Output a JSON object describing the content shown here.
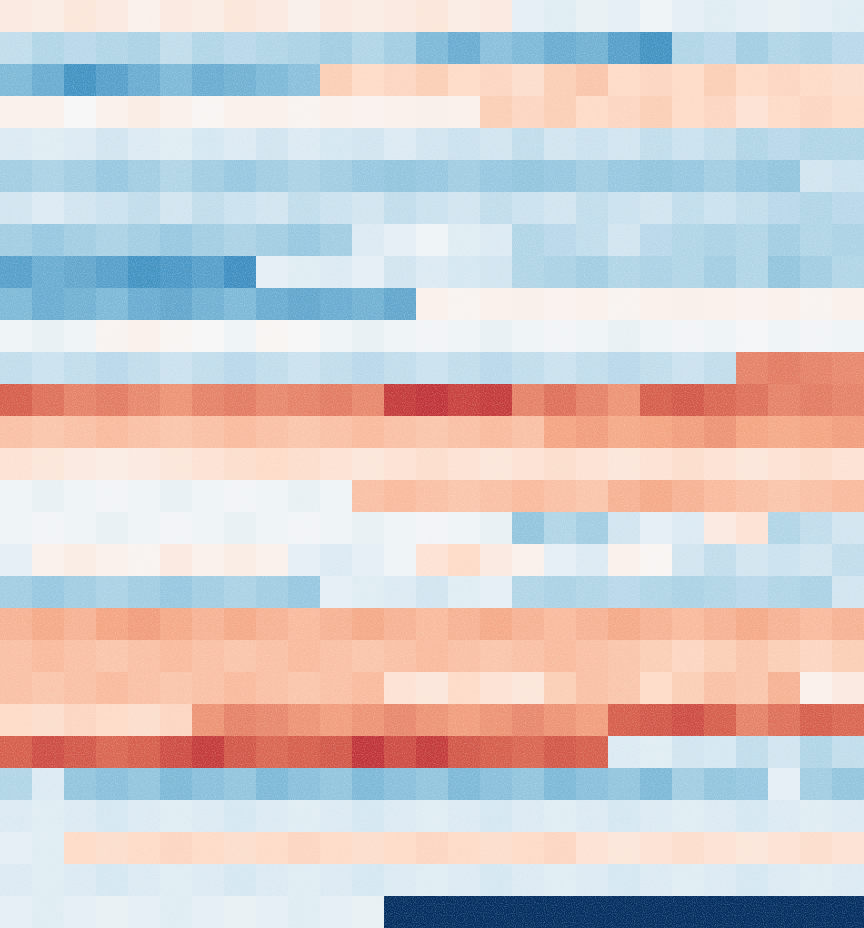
{
  "chart_data": {
    "type": "heatmap",
    "zlim": [
      -1,
      1
    ],
    "tick_labels": false,
    "cells": [
      [
        0.1,
        0.08,
        0.12,
        0.1,
        0.05,
        0.1,
        0.08,
        0.12,
        0.1,
        0.06,
        0.1,
        0.08,
        0.1,
        0.12,
        0.08,
        0.1,
        -0.1,
        -0.12,
        -0.08,
        -0.1,
        -0.05,
        -0.1,
        -0.12,
        -0.1,
        -0.08,
        -0.1,
        -0.12
      ],
      [
        -0.25,
        -0.3,
        -0.28,
        -0.3,
        -0.32,
        -0.25,
        -0.3,
        -0.28,
        -0.3,
        -0.32,
        -0.35,
        -0.3,
        -0.35,
        -0.45,
        -0.5,
        -0.42,
        -0.45,
        -0.5,
        -0.48,
        -0.55,
        -0.6,
        -0.3,
        -0.28,
        -0.35,
        -0.3,
        -0.32,
        -0.28
      ],
      [
        -0.45,
        -0.5,
        -0.6,
        -0.55,
        -0.5,
        -0.45,
        -0.5,
        -0.48,
        -0.45,
        -0.42,
        0.25,
        0.2,
        0.22,
        0.25,
        0.2,
        0.22,
        0.18,
        0.25,
        0.28,
        0.2,
        0.22,
        0.2,
        0.25,
        0.2,
        0.22,
        0.2,
        0.18
      ],
      [
        0.05,
        0.05,
        0.0,
        0.05,
        0.08,
        0.05,
        0.02,
        0.05,
        0.05,
        0.03,
        0.05,
        0.04,
        0.05,
        0.06,
        0.05,
        0.25,
        0.22,
        0.25,
        0.2,
        0.22,
        0.25,
        0.2,
        0.22,
        0.15,
        0.2,
        0.22,
        0.2
      ],
      [
        -0.15,
        -0.12,
        -0.15,
        -0.2,
        -0.15,
        -0.12,
        -0.18,
        -0.15,
        -0.2,
        -0.15,
        -0.18,
        -0.2,
        -0.15,
        -0.2,
        -0.22,
        -0.2,
        -0.25,
        -0.2,
        -0.22,
        -0.2,
        -0.25,
        -0.22,
        -0.25,
        -0.3,
        -0.28,
        -0.3,
        -0.3
      ],
      [
        -0.35,
        -0.32,
        -0.35,
        -0.38,
        -0.35,
        -0.3,
        -0.35,
        -0.38,
        -0.35,
        -0.32,
        -0.35,
        -0.38,
        -0.4,
        -0.38,
        -0.35,
        -0.38,
        -0.4,
        -0.38,
        -0.35,
        -0.38,
        -0.4,
        -0.38,
        -0.35,
        -0.38,
        -0.4,
        -0.2,
        -0.22
      ],
      [
        -0.2,
        -0.15,
        -0.2,
        -0.22,
        -0.25,
        -0.2,
        -0.25,
        -0.22,
        -0.2,
        -0.25,
        -0.22,
        -0.2,
        -0.25,
        -0.22,
        -0.2,
        -0.25,
        -0.22,
        -0.2,
        -0.25,
        -0.22,
        -0.2,
        -0.25,
        -0.22,
        -0.25,
        -0.28,
        -0.3,
        -0.28
      ],
      [
        -0.35,
        -0.38,
        -0.35,
        -0.32,
        -0.35,
        -0.38,
        -0.35,
        -0.32,
        -0.35,
        -0.38,
        -0.35,
        -0.15,
        -0.1,
        -0.05,
        -0.12,
        -0.15,
        -0.3,
        -0.28,
        -0.25,
        -0.2,
        -0.28,
        -0.3,
        -0.32,
        -0.3,
        -0.35,
        -0.3,
        -0.32
      ],
      [
        -0.55,
        -0.5,
        -0.52,
        -0.55,
        -0.6,
        -0.58,
        -0.55,
        -0.62,
        -0.1,
        -0.12,
        -0.15,
        -0.1,
        -0.2,
        -0.15,
        -0.18,
        -0.2,
        -0.3,
        -0.32,
        -0.35,
        -0.3,
        -0.32,
        -0.3,
        -0.35,
        -0.3,
        -0.4,
        -0.35,
        -0.3
      ],
      [
        -0.45,
        -0.5,
        -0.48,
        -0.45,
        -0.5,
        -0.52,
        -0.48,
        -0.45,
        -0.5,
        -0.52,
        -0.5,
        -0.48,
        -0.52,
        0.05,
        0.03,
        0.05,
        0.06,
        0.04,
        0.05,
        0.03,
        0.05,
        0.06,
        0.05,
        0.04,
        0.05,
        0.03,
        0.05
      ],
      [
        -0.05,
        -0.08,
        -0.05,
        0.03,
        0.05,
        0.02,
        0.0,
        -0.05,
        0.02,
        0.0,
        -0.05,
        -0.08,
        -0.05,
        -0.03,
        -0.05,
        -0.08,
        -0.05,
        -0.03,
        -0.05,
        -0.08,
        -0.05,
        -0.03,
        -0.05,
        -0.02,
        -0.05,
        -0.03,
        -0.05
      ],
      [
        -0.25,
        -0.22,
        -0.25,
        -0.28,
        -0.25,
        -0.22,
        -0.25,
        -0.28,
        -0.25,
        -0.22,
        -0.25,
        -0.28,
        -0.25,
        -0.22,
        -0.25,
        -0.28,
        -0.25,
        -0.22,
        -0.25,
        -0.28,
        -0.25,
        -0.22,
        -0.25,
        0.5,
        0.52,
        0.5,
        0.48
      ],
      [
        0.6,
        0.55,
        0.5,
        0.52,
        0.48,
        0.45,
        0.5,
        0.52,
        0.48,
        0.5,
        0.52,
        0.48,
        0.7,
        0.72,
        0.68,
        0.7,
        0.5,
        0.55,
        0.5,
        0.45,
        0.6,
        0.62,
        0.58,
        0.55,
        0.5,
        0.52,
        0.5
      ],
      [
        0.3,
        0.28,
        0.3,
        0.32,
        0.3,
        0.28,
        0.3,
        0.32,
        0.3,
        0.28,
        0.3,
        0.32,
        0.3,
        0.28,
        0.3,
        0.32,
        0.3,
        0.4,
        0.42,
        0.38,
        0.4,
        0.42,
        0.45,
        0.4,
        0.38,
        0.4,
        0.42
      ],
      [
        0.15,
        0.12,
        0.1,
        0.08,
        0.1,
        0.12,
        0.15,
        0.18,
        0.2,
        0.18,
        0.15,
        0.12,
        0.15,
        0.18,
        0.15,
        0.12,
        0.15,
        0.18,
        0.15,
        0.12,
        0.15,
        0.18,
        0.15,
        0.12,
        0.15,
        0.18,
        0.15
      ],
      [
        -0.05,
        -0.08,
        -0.05,
        -0.03,
        -0.05,
        -0.08,
        -0.05,
        -0.03,
        -0.05,
        -0.08,
        -0.05,
        0.3,
        0.32,
        0.3,
        0.28,
        0.3,
        0.32,
        0.3,
        0.28,
        0.35,
        0.38,
        0.35,
        0.32,
        0.3,
        0.28,
        0.3,
        0.32
      ],
      [
        -0.05,
        -0.03,
        -0.05,
        -0.08,
        -0.05,
        -0.03,
        -0.05,
        -0.08,
        -0.05,
        -0.03,
        -0.05,
        -0.08,
        -0.05,
        -0.03,
        -0.05,
        -0.08,
        -0.4,
        -0.3,
        -0.35,
        -0.2,
        -0.1,
        -0.15,
        0.1,
        0.15,
        -0.3,
        -0.25,
        -0.2
      ],
      [
        -0.1,
        0.05,
        0.08,
        0.05,
        0.03,
        0.1,
        0.05,
        0.08,
        0.05,
        -0.1,
        -0.15,
        -0.1,
        -0.05,
        0.15,
        0.2,
        0.1,
        0.05,
        -0.1,
        -0.15,
        0.05,
        0.02,
        -0.2,
        -0.25,
        -0.2,
        -0.22,
        -0.2,
        -0.25
      ],
      [
        -0.35,
        -0.38,
        -0.35,
        -0.32,
        -0.35,
        -0.38,
        -0.35,
        -0.32,
        -0.35,
        -0.38,
        -0.1,
        -0.12,
        -0.15,
        -0.2,
        -0.12,
        -0.1,
        -0.3,
        -0.32,
        -0.3,
        -0.28,
        -0.3,
        -0.32,
        -0.3,
        -0.28,
        -0.3,
        -0.32,
        -0.2
      ],
      [
        0.35,
        0.38,
        0.35,
        0.4,
        0.42,
        0.38,
        0.35,
        0.38,
        0.35,
        0.32,
        0.35,
        0.38,
        0.35,
        0.32,
        0.35,
        0.38,
        0.35,
        0.32,
        0.35,
        0.38,
        0.35,
        0.32,
        0.35,
        0.38,
        0.35,
        0.32,
        0.35
      ],
      [
        0.3,
        0.32,
        0.3,
        0.28,
        0.3,
        0.32,
        0.3,
        0.28,
        0.3,
        0.32,
        0.3,
        0.28,
        0.3,
        0.32,
        0.3,
        0.28,
        0.3,
        0.32,
        0.3,
        0.28,
        0.25,
        0.22,
        0.25,
        0.28,
        0.25,
        0.22,
        0.25
      ],
      [
        0.3,
        0.28,
        0.3,
        0.32,
        0.3,
        0.28,
        0.3,
        0.32,
        0.3,
        0.28,
        0.3,
        0.32,
        0.15,
        0.12,
        0.2,
        0.15,
        0.12,
        0.25,
        0.3,
        0.28,
        0.2,
        0.25,
        0.3,
        0.28,
        0.35,
        0.05,
        0.1
      ],
      [
        0.2,
        0.18,
        0.22,
        0.2,
        0.18,
        0.22,
        0.45,
        0.5,
        0.48,
        0.45,
        0.42,
        0.45,
        0.48,
        0.45,
        0.42,
        0.45,
        0.48,
        0.45,
        0.42,
        0.6,
        0.62,
        0.65,
        0.6,
        0.5,
        0.55,
        0.6,
        0.58
      ],
      [
        0.6,
        0.65,
        0.62,
        0.58,
        0.6,
        0.65,
        0.7,
        0.62,
        0.58,
        0.6,
        0.62,
        0.72,
        0.65,
        0.7,
        0.62,
        0.6,
        0.58,
        0.62,
        0.6,
        -0.15,
        -0.12,
        -0.2,
        -0.18,
        -0.25,
        -0.2,
        -0.3,
        -0.25
      ],
      [
        -0.3,
        -0.15,
        -0.4,
        -0.42,
        -0.4,
        -0.45,
        -0.42,
        -0.4,
        -0.45,
        -0.42,
        -0.4,
        -0.45,
        -0.42,
        -0.4,
        -0.45,
        -0.42,
        -0.4,
        -0.45,
        -0.42,
        -0.4,
        -0.45,
        -0.35,
        -0.4,
        -0.38,
        -0.1,
        -0.35,
        -0.4
      ],
      [
        -0.15,
        -0.12,
        -0.15,
        -0.18,
        -0.15,
        -0.12,
        -0.15,
        -0.18,
        -0.15,
        -0.12,
        -0.15,
        -0.18,
        -0.15,
        -0.12,
        -0.15,
        -0.18,
        -0.15,
        -0.12,
        -0.15,
        -0.18,
        -0.15,
        -0.12,
        -0.15,
        -0.18,
        -0.15,
        -0.12,
        -0.15
      ],
      [
        -0.1,
        -0.12,
        0.2,
        0.18,
        0.2,
        0.22,
        0.2,
        0.18,
        0.2,
        0.22,
        0.2,
        0.18,
        0.2,
        0.22,
        0.2,
        0.18,
        0.2,
        0.22,
        0.15,
        0.12,
        0.15,
        0.18,
        0.15,
        0.12,
        0.15,
        0.18,
        0.15
      ],
      [
        -0.15,
        -0.12,
        -0.15,
        -0.18,
        -0.15,
        -0.12,
        -0.15,
        -0.18,
        -0.15,
        -0.12,
        -0.15,
        -0.18,
        -0.15,
        -0.12,
        -0.15,
        -0.18,
        -0.15,
        -0.12,
        -0.15,
        -0.18,
        -0.15,
        -0.12,
        -0.15,
        -0.18,
        -0.15,
        -0.12,
        -0.15
      ],
      [
        -0.1,
        -0.12,
        -0.1,
        -0.08,
        -0.1,
        -0.12,
        -0.1,
        -0.08,
        -0.1,
        -0.12,
        -0.1,
        -0.08,
        -1,
        -1,
        -1,
        -1,
        -1,
        -1,
        -1,
        -1,
        -1,
        -1,
        -1,
        -1,
        -1,
        -1,
        -1
      ]
    ]
  }
}
